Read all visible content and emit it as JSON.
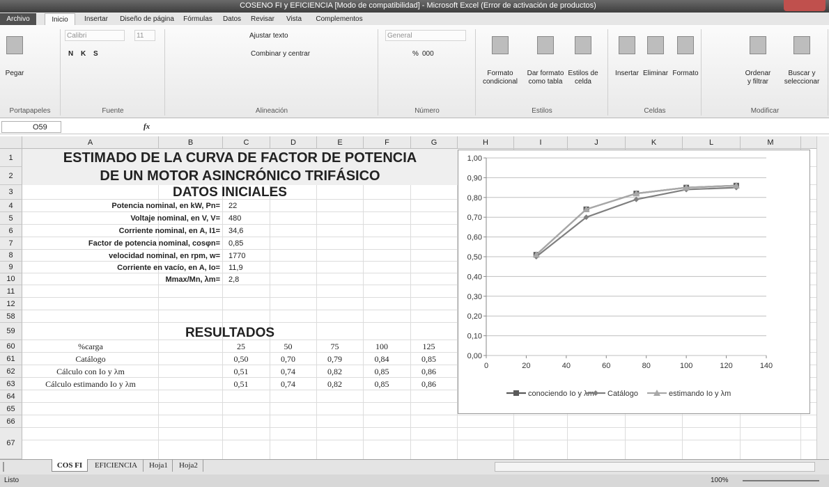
{
  "window": {
    "title": "COSENO FI y EFICIENCIA  [Modo de compatibilidad]  -  Microsoft Excel (Error de activación de productos)"
  },
  "ribbon": {
    "tabs": [
      "Archivo",
      "Inicio",
      "Insertar",
      "Diseño de página",
      "Fórmulas",
      "Datos",
      "Revisar",
      "Vista",
      "Complementos"
    ],
    "groups": [
      "Portapapeles",
      "Fuente",
      "Alineación",
      "Número",
      "Estilos",
      "Celdas",
      "Modificar"
    ],
    "controls": [
      [
        "Pegar"
      ],
      [
        "Calibri"
      ],
      [
        "11"
      ],
      [
        "N"
      ],
      [
        "K"
      ],
      [
        "S"
      ],
      [
        "Ajustar texto"
      ],
      [
        "Combinar y centrar"
      ],
      [
        "General"
      ],
      [
        "%"
      ],
      [
        "000"
      ],
      [
        "Formato",
        "condicional"
      ],
      [
        "Dar formato",
        "como tabla"
      ],
      [
        "Estilos de",
        "celda"
      ],
      [
        "Insertar"
      ],
      [
        "Eliminar"
      ],
      [
        "Formato"
      ],
      [
        "Ordenar",
        "y filtrar"
      ],
      [
        "Buscar y",
        "seleccionar"
      ]
    ]
  },
  "formula_bar": {
    "name_box": "O59",
    "fx": "fx"
  },
  "sheet": {
    "columns": [
      "A",
      "B",
      "C",
      "D",
      "E",
      "F",
      "G",
      "H",
      "I",
      "J",
      "K",
      "L",
      "M"
    ],
    "rows": [
      "1",
      "2",
      "3",
      "4",
      "5",
      "6",
      "7",
      "8",
      "9",
      "10",
      "11",
      "12",
      "58",
      "59",
      "60",
      "61",
      "62",
      "63",
      "64",
      "65",
      "66",
      "67"
    ],
    "heading1": "ESTIMADO DE LA CURVA DE FACTOR DE POTENCIA",
    "heading2": "DE UN MOTOR ASINCRÓNICO TRIFÁSICO",
    "datos_title": "DATOS INICIALES",
    "datos": [
      {
        "label": "Potencia nominal, en kW, Pn=",
        "value": "22"
      },
      {
        "label": "Voltaje nominal, en V, V=",
        "value": "480"
      },
      {
        "label": "Corriente nominal, en A, I1=",
        "value": "34,6"
      },
      {
        "label": "Factor de potencia nominal, cosφn=",
        "value": "0,85"
      },
      {
        "label": "velocidad nominal, en rpm, w=",
        "value": "1770"
      },
      {
        "label": "Corriente en vacío, en A,  Io=",
        "value": "11,9"
      },
      {
        "label": "Mmax/Mn, λm=",
        "value": "2,8"
      }
    ],
    "resultados_title": "RESULTADOS",
    "resultados": [
      [
        "%carga",
        "25",
        "50",
        "75",
        "100",
        "125"
      ],
      [
        "Catálogo",
        "0,50",
        "0,70",
        "0,79",
        "0,84",
        "0,85"
      ],
      [
        "Cálculo con Io y λm",
        "0,51",
        "0,74",
        "0,82",
        "0,85",
        "0,86"
      ],
      [
        "Cálculo estimando Io y λm",
        "0,51",
        "0,74",
        "0,82",
        "0,85",
        "0,86"
      ]
    ]
  },
  "chart_data": {
    "type": "line",
    "x": [
      25,
      50,
      75,
      100,
      125
    ],
    "series": [
      {
        "name": "conociendo Io y λm",
        "color": "#5a5a5a",
        "marker": "square",
        "values": [
          0.51,
          0.74,
          0.82,
          0.85,
          0.86
        ]
      },
      {
        "name": "Catálogo",
        "color": "#7f7f7f",
        "marker": "diamond",
        "values": [
          0.5,
          0.7,
          0.79,
          0.84,
          0.85
        ]
      },
      {
        "name": "estimando Io y λm",
        "color": "#a8a8a8",
        "marker": "triangle",
        "values": [
          0.51,
          0.74,
          0.82,
          0.85,
          0.86
        ]
      }
    ],
    "xlim": [
      0,
      140
    ],
    "xticks": [
      0,
      20,
      40,
      60,
      80,
      100,
      120,
      140
    ],
    "ylim": [
      0,
      1
    ],
    "yticks": [
      {
        "value": 0,
        "label": "0,00"
      },
      {
        "value": 0.1,
        "label": "0,10"
      },
      {
        "value": 0.2,
        "label": "0,20"
      },
      {
        "value": 0.3,
        "label": "0,30"
      },
      {
        "value": 0.4,
        "label": "0,40"
      },
      {
        "value": 0.5,
        "label": "0,50"
      },
      {
        "value": 0.6,
        "label": "0,60"
      },
      {
        "value": 0.7,
        "label": "0,70"
      },
      {
        "value": 0.8,
        "label": "0,80"
      },
      {
        "value": 0.9,
        "label": "0,90"
      },
      {
        "value": 1,
        "label": "1,00"
      }
    ],
    "grid": true,
    "legend": "bottom"
  },
  "sheet_tabs": [
    "COS FI",
    "EFICIENCIA",
    "Hoja1",
    "Hoja2"
  ],
  "status": {
    "text": "Listo",
    "zoom": "100%"
  }
}
